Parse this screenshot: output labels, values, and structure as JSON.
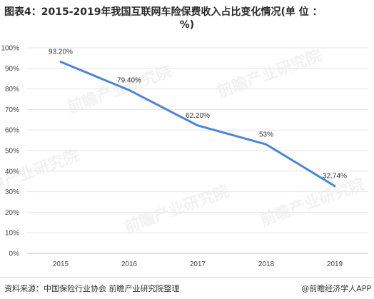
{
  "title_line1": "图表4：2015-2019年我国互联网车险保费收入占比变化情况(单 位 ：",
  "title_line2": "%)",
  "source": "资料来源：中国保险行业协会 前瞻产业研究院整理",
  "brand": "@前瞻经济学人APP",
  "watermark": "前瞻产业研究院",
  "colors": {
    "line": "#4a86d8",
    "grid": "#e6e6e6",
    "axis": "#bfbfbf"
  },
  "chart_data": {
    "type": "line",
    "categories": [
      "2015",
      "2016",
      "2017",
      "2018",
      "2019"
    ],
    "values": [
      93.2,
      79.4,
      62.2,
      53,
      32.74
    ],
    "data_labels": [
      "93.20%",
      "79.40%",
      "62.20%",
      "53%",
      "32.74%"
    ],
    "y_ticks": [
      "0%",
      "10%",
      "20%",
      "30%",
      "40%",
      "50%",
      "60%",
      "70%",
      "80%",
      "90%",
      "100%"
    ],
    "ylim": [
      0,
      100
    ],
    "grid": true,
    "legend": "none"
  }
}
